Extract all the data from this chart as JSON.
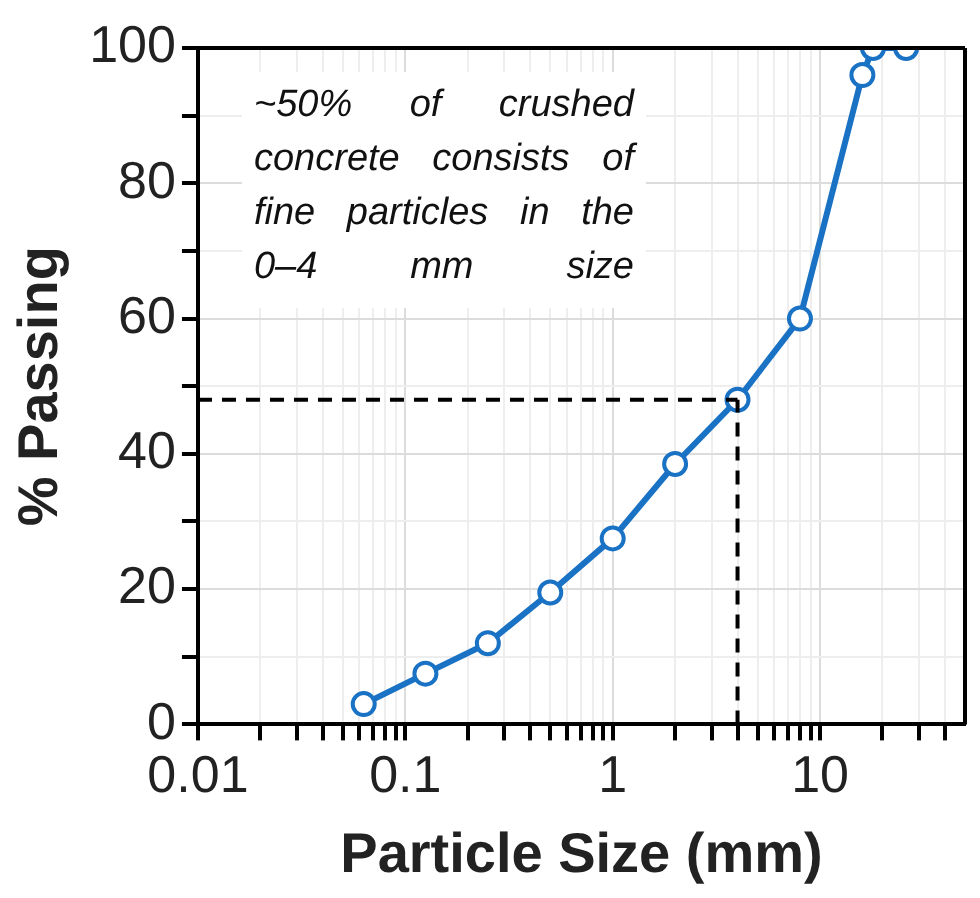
{
  "chart_data": {
    "type": "line",
    "xlabel": "Particle Size (mm)",
    "ylabel": "% Passing",
    "x": [
      0.063,
      0.125,
      0.25,
      0.5,
      1,
      2,
      4,
      8,
      16,
      18,
      26
    ],
    "series": [
      {
        "color": "#1a72c4",
        "values": [
          3,
          7.5,
          12,
          19.5,
          27.5,
          38.5,
          48,
          60,
          96,
          100,
          100
        ]
      }
    ],
    "log": "x",
    "xlim": [
      0.01,
      50
    ],
    "xticks": [
      0.01,
      {
        "value": 0.02,
        "label": null
      },
      {
        "value": 0.03,
        "label": null
      },
      {
        "value": 0.04,
        "label": null
      },
      {
        "value": 0.05,
        "label": null
      },
      {
        "value": 0.06,
        "label": null
      },
      {
        "value": 0.07,
        "label": null
      },
      {
        "value": 0.08,
        "label": null
      },
      {
        "value": 0.09,
        "label": null
      },
      0.1,
      {
        "value": 0.2,
        "label": null
      },
      {
        "value": 0.3,
        "label": null
      },
      {
        "value": 0.4,
        "label": null
      },
      {
        "value": 0.5,
        "label": null
      },
      {
        "value": 0.6,
        "label": null
      },
      {
        "value": 0.7,
        "label": null
      },
      {
        "value": 0.8,
        "label": null
      },
      {
        "value": 0.9,
        "label": null
      },
      1,
      {
        "value": 2,
        "label": null
      },
      {
        "value": 3,
        "label": null
      },
      {
        "value": 4,
        "label": null
      },
      {
        "value": 5,
        "label": null
      },
      {
        "value": 6,
        "label": null
      },
      {
        "value": 7,
        "label": null
      },
      {
        "value": 8,
        "label": null
      },
      {
        "value": 9,
        "label": null
      },
      10,
      {
        "value": 20,
        "label": null
      },
      {
        "value": 30,
        "label": null
      },
      {
        "value": 40,
        "label": null
      }
    ],
    "ylim": [
      0,
      100
    ],
    "yticks": [
      0,
      {
        "value": 10,
        "label": null
      },
      20,
      {
        "value": 30,
        "label": null
      },
      40,
      {
        "value": 50,
        "label": null
      },
      60,
      {
        "value": 70,
        "label": null
      },
      80,
      {
        "value": 90,
        "label": null
      },
      100
    ],
    "grid": true,
    "marker": "circle",
    "line_style": "solid",
    "ref_lines": [
      {
        "axis": "y",
        "value": 48,
        "line_style": "dashed",
        "color": "#000000"
      },
      {
        "axis": "x",
        "value": 4,
        "line_style": "dashed",
        "color": "#000000"
      }
    ],
    "annotations": [
      "~50% of crushed concrete consists of fine particles in the 0–4 mm size"
    ]
  }
}
